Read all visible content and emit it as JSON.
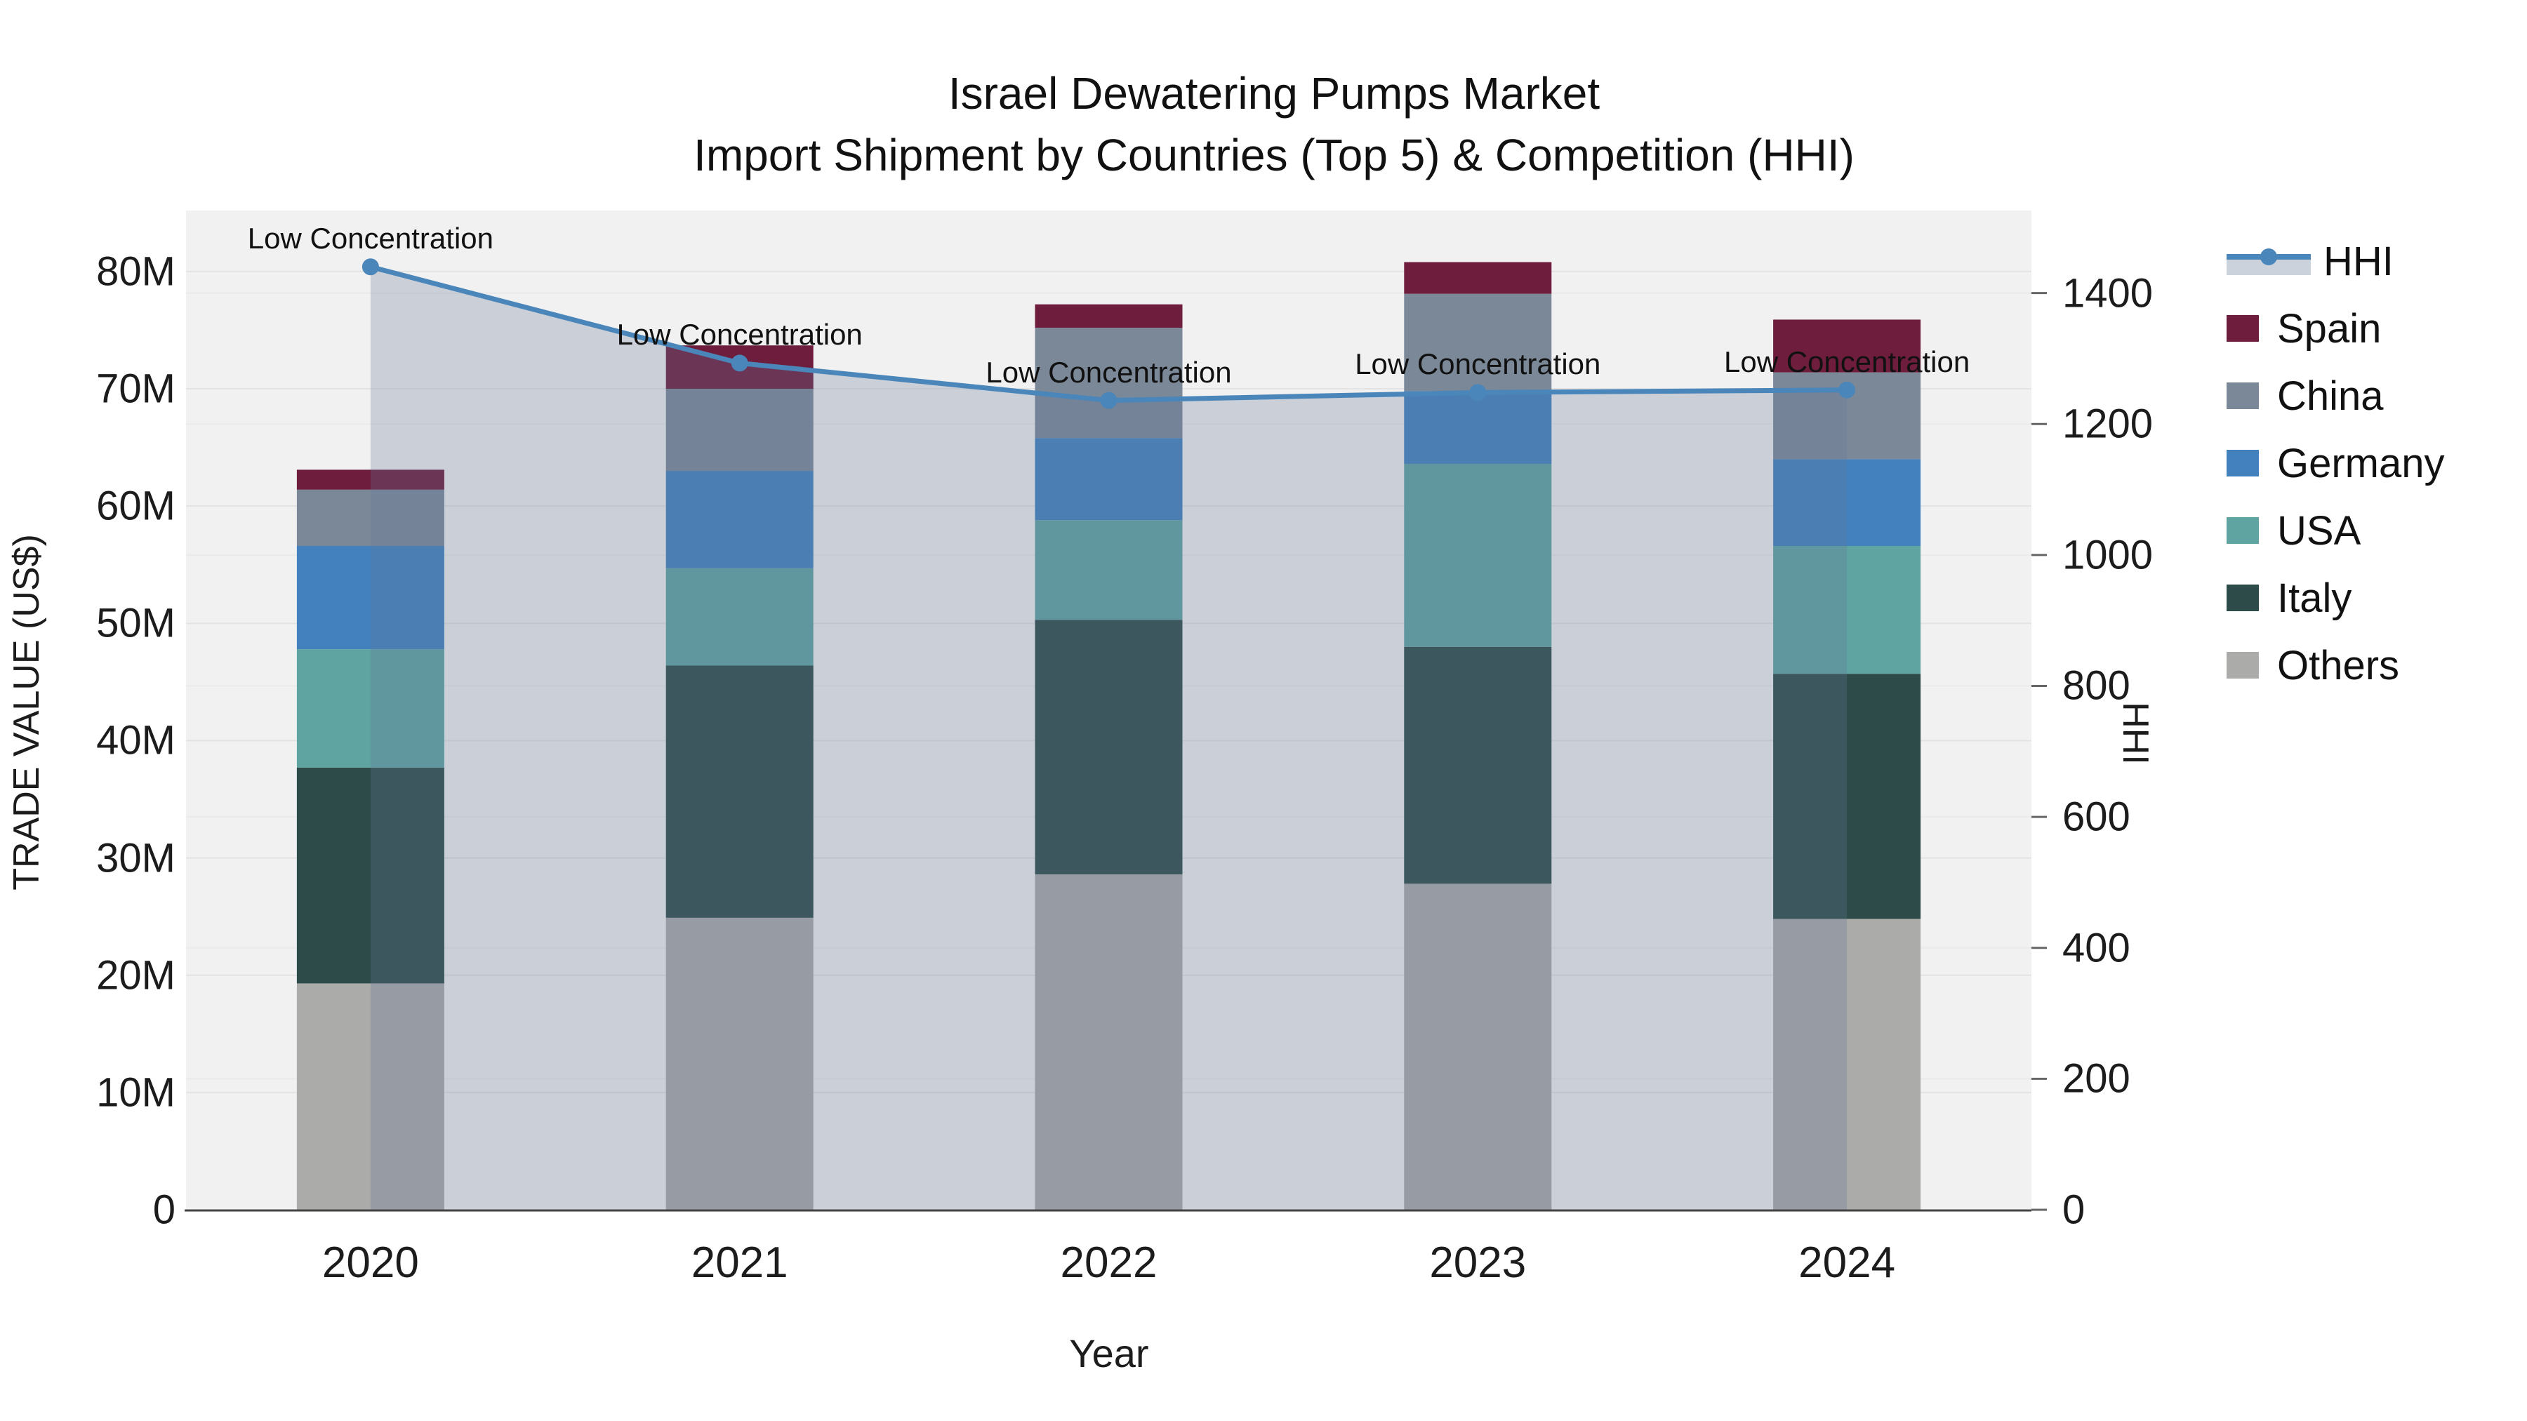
{
  "title": {
    "line1": "Israel Dewatering Pumps Market",
    "line2": "Import Shipment by Countries (Top 5) & Competition (HHI)"
  },
  "chart_data": {
    "type": "bar",
    "subtype": "stacked-bars-with-line-area-overlay",
    "categories": [
      "2020",
      "2021",
      "2022",
      "2023",
      "2024"
    ],
    "xlabel": "Year",
    "ylabel_left": "TRADE VALUE (US$)",
    "ylabel_right": "HHI",
    "y_left": {
      "tick_labels": [
        "0",
        "10M",
        "20M",
        "30M",
        "40M",
        "50M",
        "60M",
        "70M",
        "80M"
      ],
      "tick_values_musd": [
        0,
        10,
        20,
        30,
        40,
        50,
        60,
        70,
        80
      ],
      "axis_max_musd": 85.2
    },
    "y_right": {
      "tick_labels": [
        "0",
        "200",
        "400",
        "600",
        "800",
        "1000",
        "1200",
        "1400"
      ],
      "tick_values": [
        0,
        200,
        400,
        600,
        800,
        1000,
        1200,
        1400
      ],
      "axis_max": 1526
    },
    "series": [
      {
        "name": "Spain",
        "color": "#6e1d3d",
        "values_musd": [
          1.7,
          3.7,
          2.0,
          2.7,
          4.5
        ]
      },
      {
        "name": "China",
        "color": "#7b8898",
        "values_musd": [
          4.8,
          7.0,
          9.4,
          8.3,
          7.4
        ]
      },
      {
        "name": "Germany",
        "color": "#4281bd",
        "values_musd": [
          8.8,
          8.3,
          7.0,
          6.2,
          7.4
        ]
      },
      {
        "name": "USA",
        "color": "#5fa4a1",
        "values_musd": [
          10.1,
          8.3,
          8.5,
          15.6,
          10.9
        ]
      },
      {
        "name": "Italy",
        "color": "#2d4b48",
        "values_musd": [
          18.4,
          21.5,
          21.7,
          20.2,
          20.9
        ]
      },
      {
        "name": "Others",
        "color": "#ababa9",
        "values_musd": [
          19.3,
          24.9,
          28.6,
          27.8,
          24.8
        ]
      }
    ],
    "stack_totals_musd": [
      63.1,
      73.7,
      77.2,
      80.8,
      75.9
    ],
    "hhi": {
      "name": "HHI",
      "values": [
        1440,
        1293,
        1236,
        1248,
        1252
      ],
      "line_color": "#4a86ba",
      "marker_color": "#4a86ba",
      "area_fill_color": "rgba(100,120,150,0.28)"
    },
    "annotations": [
      {
        "category": "2020",
        "text": "Low Concentration"
      },
      {
        "category": "2021",
        "text": "Low Concentration"
      },
      {
        "category": "2022",
        "text": "Low Concentration"
      },
      {
        "category": "2023",
        "text": "Low Concentration"
      },
      {
        "category": "2024",
        "text": "Low Concentration"
      }
    ],
    "legend_order": [
      "HHI",
      "Spain",
      "China",
      "Germany",
      "USA",
      "Italy",
      "Others"
    ],
    "legend_position": "top-right",
    "grid": true,
    "plot_background": "#f1f1f1",
    "gridline_color_left": "#e3e3e3",
    "gridline_color_right": "#eaeaea",
    "axis_line_color": "#444444"
  }
}
